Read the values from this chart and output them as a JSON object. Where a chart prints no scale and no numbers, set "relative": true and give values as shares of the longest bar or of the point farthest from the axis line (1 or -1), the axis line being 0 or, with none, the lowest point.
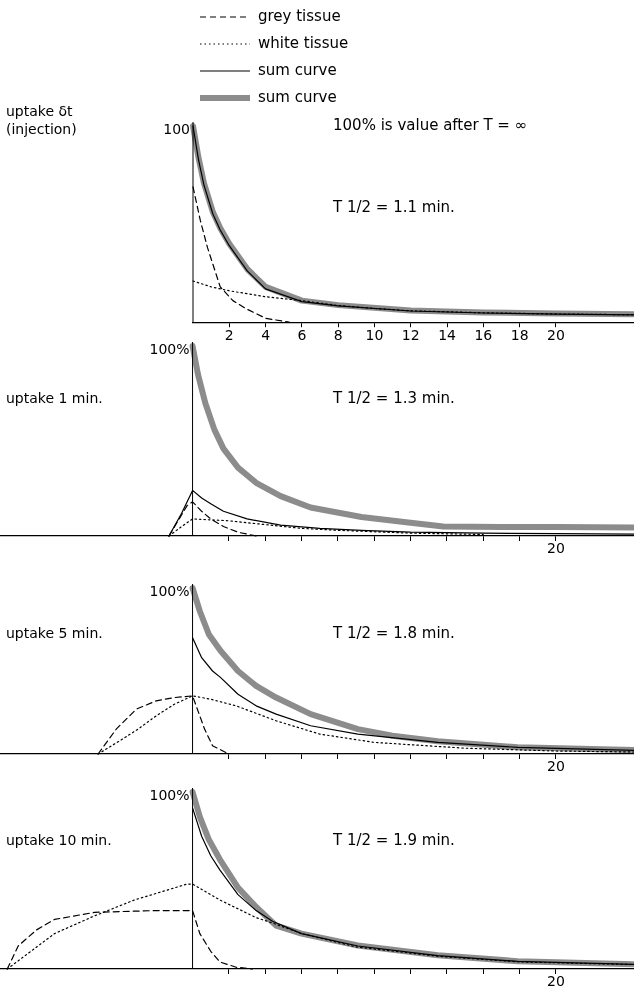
{
  "chart_data": [
    {
      "type": "line",
      "relative": true,
      "ylabel": "uptake δt (injection)",
      "legend": "top",
      "xlim": [
        0,
        24.3
      ],
      "xticks": [
        2,
        4,
        6,
        8,
        10,
        12,
        14,
        16,
        18,
        20
      ],
      "annotations": [
        "100",
        "100% is value after T = ∞",
        "T 1/2 = 1.1 min."
      ],
      "series": [
        {
          "name": "grey tissue",
          "color": "#000000",
          "line_style": "dashed",
          "x": [
            0,
            0.4,
            0.8,
            1.5,
            2.2,
            2.9,
            4,
            5.3
          ],
          "values": [
            0.69,
            0.52,
            0.38,
            0.18,
            0.11,
            0.07,
            0.02,
            0
          ]
        },
        {
          "name": "white tissue",
          "color": "#000000",
          "line_style": "dotted",
          "x": [
            0,
            1,
            2,
            3,
            4,
            5,
            6,
            8,
            10,
            12,
            16,
            20,
            24.3
          ],
          "values": [
            0.21,
            0.18,
            0.16,
            0.145,
            0.13,
            0.12,
            0.11,
            0.085,
            0.07,
            0.058,
            0.048,
            0.042,
            0.038
          ]
        },
        {
          "name": "sum curve",
          "color": "#000000",
          "line_style": "solid",
          "x": [
            0,
            0.3,
            0.6,
            1.1,
            1.5,
            2,
            3,
            4,
            6,
            8,
            12,
            16,
            20,
            24.3
          ],
          "values": [
            1.0,
            0.83,
            0.7,
            0.55,
            0.47,
            0.39,
            0.26,
            0.17,
            0.105,
            0.083,
            0.057,
            0.047,
            0.041,
            0.037
          ]
        },
        {
          "name": "sum curve",
          "color": "#8c8c8c",
          "line_style": "solid",
          "x": [
            0,
            0.3,
            0.6,
            1.1,
            1.5,
            2,
            3,
            4,
            6,
            8,
            12,
            16,
            20,
            24.3
          ],
          "values": [
            1.0,
            0.84,
            0.71,
            0.56,
            0.48,
            0.4,
            0.27,
            0.18,
            0.11,
            0.087,
            0.06,
            0.05,
            0.044,
            0.04
          ]
        }
      ]
    },
    {
      "type": "line",
      "relative": true,
      "ylabel": "uptake 1 min.",
      "xlim": [
        -10.6,
        24.3
      ],
      "xticks": [
        2,
        4,
        6,
        8,
        10,
        12,
        14,
        16,
        18,
        20
      ],
      "tick_labels": false,
      "annotations": [
        "100%",
        "T 1/2 = 1.3 min.",
        "20"
      ],
      "series": [
        {
          "color": "#000000",
          "line_style": "dashed",
          "x": [
            -1.3,
            -0.8,
            -0.3,
            0,
            0.5,
            1,
            1.7,
            2.5,
            3.5
          ],
          "values": [
            0,
            0.08,
            0.16,
            0.18,
            0.13,
            0.09,
            0.05,
            0.02,
            0
          ]
        },
        {
          "color": "#000000",
          "line_style": "dotted",
          "x": [
            -1.3,
            -0.6,
            0,
            1,
            2,
            4,
            6,
            8,
            12,
            16
          ],
          "values": [
            0,
            0.05,
            0.09,
            0.085,
            0.08,
            0.06,
            0.04,
            0.03,
            0.015,
            0.008
          ]
        },
        {
          "color": "#000000",
          "line_style": "solid",
          "x": [
            -1.3,
            -0.6,
            0,
            0.5,
            1,
            1.7,
            3,
            4.85,
            7,
            9.3,
            12,
            16,
            20,
            24.3
          ],
          "values": [
            0,
            0.12,
            0.24,
            0.2,
            0.17,
            0.13,
            0.09,
            0.057,
            0.04,
            0.03,
            0.02,
            0.015,
            0.012,
            0.01
          ]
        },
        {
          "color": "#8c8c8c",
          "line_style": "solid",
          "x": [
            0,
            0.3,
            0.7,
            1.2,
            1.7,
            2.5,
            3.5,
            4.85,
            6.5,
            9.3,
            12,
            13.8,
            17,
            20,
            24.3
          ],
          "values": [
            1.0,
            0.85,
            0.7,
            0.56,
            0.46,
            0.36,
            0.28,
            0.21,
            0.15,
            0.1,
            0.07,
            0.05,
            0.048,
            0.047,
            0.045
          ]
        }
      ]
    },
    {
      "type": "line",
      "relative": true,
      "ylabel": "uptake 5 min.",
      "xlim": [
        -10.6,
        24.3
      ],
      "xticks": [
        2,
        4,
        6,
        8,
        10,
        12,
        14,
        16,
        18,
        20
      ],
      "tick_labels": false,
      "annotations": [
        "100%",
        "T 1/2 = 1.8 min.",
        "20"
      ],
      "series": [
        {
          "color": "#000000",
          "line_style": "dashed",
          "x": [
            -5.2,
            -4.2,
            -3.1,
            -2,
            -1,
            0,
            0.66,
            1.1,
            2
          ],
          "values": [
            0,
            0.15,
            0.27,
            0.32,
            0.34,
            0.35,
            0.15,
            0.05,
            0
          ]
        },
        {
          "color": "#000000",
          "line_style": "dotted",
          "x": [
            -5.2,
            -4,
            -3,
            -2,
            -1,
            0,
            1,
            2.4,
            4.6,
            7,
            10,
            15,
            20,
            24.3
          ],
          "values": [
            0,
            0.08,
            0.15,
            0.23,
            0.3,
            0.35,
            0.33,
            0.29,
            0.2,
            0.12,
            0.07,
            0.035,
            0.018,
            0.012
          ]
        },
        {
          "color": "#000000",
          "line_style": "solid",
          "x": [
            0,
            0.5,
            1.1,
            1.55,
            2.5,
            3.5,
            4.6,
            6.5,
            9.1,
            13.5,
            17.9,
            24.3
          ],
          "values": [
            0.7,
            0.58,
            0.5,
            0.46,
            0.36,
            0.29,
            0.24,
            0.17,
            0.12,
            0.07,
            0.04,
            0.022
          ]
        },
        {
          "color": "#8c8c8c",
          "line_style": "solid",
          "x": [
            0,
            0.4,
            0.9,
            1.55,
            2.5,
            3.5,
            4.6,
            6.5,
            9.1,
            11,
            13.5,
            17.9,
            24.3
          ],
          "values": [
            1.0,
            0.86,
            0.72,
            0.62,
            0.5,
            0.41,
            0.34,
            0.24,
            0.15,
            0.11,
            0.077,
            0.04,
            0.024
          ]
        }
      ]
    },
    {
      "type": "line",
      "relative": true,
      "ylabel": "uptake 10 min.",
      "xlim": [
        -10.6,
        24.3
      ],
      "xticks": [
        2,
        4,
        6,
        8,
        10,
        12,
        14,
        16,
        18,
        20
      ],
      "tick_labels": false,
      "annotations": [
        "100%",
        "T 1/2 = 1.9 min.",
        "20"
      ],
      "series": [
        {
          "color": "#000000",
          "line_style": "dashed",
          "x": [
            -10.2,
            -9.6,
            -8.6,
            -7.6,
            -5.4,
            -2.1,
            0,
            0.4,
            1,
            1.5,
            2.4,
            3.3
          ],
          "values": [
            0,
            0.13,
            0.22,
            0.28,
            0.32,
            0.33,
            0.33,
            0.2,
            0.1,
            0.04,
            0.01,
            0
          ]
        },
        {
          "color": "#000000",
          "line_style": "dotted",
          "x": [
            -10.2,
            -7.6,
            -5.4,
            -3.2,
            -0.3,
            0,
            1.5,
            3.5,
            4.4,
            6,
            9,
            13.5,
            18,
            24.3
          ],
          "values": [
            0,
            0.2,
            0.3,
            0.39,
            0.48,
            0.48,
            0.39,
            0.29,
            0.26,
            0.2,
            0.125,
            0.072,
            0.04,
            0.025
          ]
        },
        {
          "color": "#000000",
          "line_style": "solid",
          "x": [
            0,
            0.5,
            1,
            1.5,
            2.5,
            3.5,
            4.4,
            6,
            9.1,
            13.5,
            17.9,
            24.3
          ],
          "values": [
            0.91,
            0.75,
            0.64,
            0.56,
            0.42,
            0.33,
            0.27,
            0.2,
            0.13,
            0.076,
            0.043,
            0.026
          ]
        },
        {
          "color": "#8c8c8c",
          "line_style": "solid",
          "x": [
            0,
            0.4,
            0.9,
            1.5,
            2.5,
            3.5,
            4.6,
            6,
            9.1,
            13.5,
            17.9,
            24.3
          ],
          "values": [
            1.0,
            0.86,
            0.73,
            0.62,
            0.46,
            0.35,
            0.245,
            0.2,
            0.133,
            0.078,
            0.044,
            0.027
          ]
        }
      ]
    }
  ]
}
